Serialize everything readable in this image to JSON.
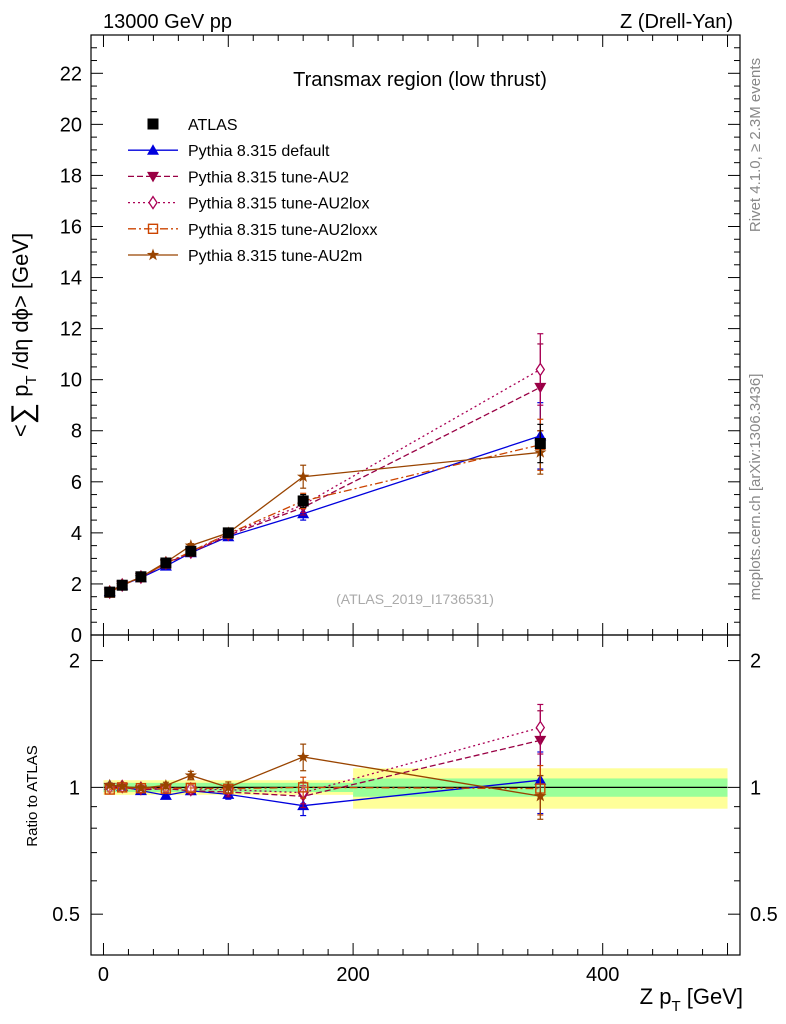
{
  "header": {
    "left": "13000 GeV pp",
    "right": "Z (Drell-Yan)"
  },
  "side_labels": {
    "rivet": "Rivet 4.1.0, ≥ 2.3M events",
    "mcplots": "mcplots.cern.ch [arXiv:1306.3436]"
  },
  "chart_data": {
    "type": "line",
    "title": "Transmax region (low thrust)",
    "watermark": "(ATLAS_2019_I1736531)",
    "xlabel": "Z p_T [GeV]",
    "ylabel": "<∑ p_T /dη dφ> [GeV]",
    "ratio_ylabel": "Ratio to ATLAS",
    "xlim": [
      -10,
      510
    ],
    "ylim": [
      0,
      23.5
    ],
    "ratio_ylim": [
      0.4,
      2.3
    ],
    "x_ticks": [
      "0",
      "200",
      "400"
    ],
    "y_ticks": [
      "0",
      "2",
      "4",
      "6",
      "8",
      "10",
      "12",
      "14",
      "16",
      "18",
      "20",
      "22"
    ],
    "ratio_ticks": [
      "0.5",
      "1",
      "2"
    ],
    "x": [
      5,
      15,
      30,
      50,
      70,
      100,
      160,
      350
    ],
    "data": {
      "name": "ATLAS",
      "values": [
        1.68,
        1.95,
        2.28,
        2.82,
        3.28,
        4.0,
        5.25,
        7.5
      ],
      "errors": [
        0.04,
        0.04,
        0.05,
        0.06,
        0.08,
        0.12,
        0.25,
        0.75
      ],
      "ratio_band": [
        {
          "x0": 0,
          "x1": 200,
          "inner": 0.025,
          "outer": 0.04
        },
        {
          "x0": 200,
          "x1": 500,
          "inner": 0.05,
          "outer": 0.11
        }
      ]
    },
    "series": [
      {
        "name": "Pythia 8.315 default",
        "color": "#0000dd",
        "dash": "",
        "marker": "triangle-up",
        "values": [
          1.7,
          1.96,
          2.24,
          2.7,
          3.22,
          3.85,
          4.75,
          7.8
        ],
        "errors": [
          0.02,
          0.02,
          0.03,
          0.04,
          0.06,
          0.1,
          0.25,
          1.3
        ]
      },
      {
        "name": "Pythia 8.315 tune-AU2",
        "color": "#990044",
        "dash": "6,3",
        "marker": "triangle-down",
        "values": [
          1.68,
          1.95,
          2.25,
          2.8,
          3.22,
          3.9,
          5.0,
          9.7
        ],
        "errors": [
          0.02,
          0.02,
          0.03,
          0.04,
          0.06,
          0.1,
          0.3,
          1.7
        ]
      },
      {
        "name": "Pythia 8.315 tune-AU2lox",
        "color": "#aa0055",
        "dash": "2,3",
        "marker": "diamond-open",
        "values": [
          1.68,
          1.96,
          2.27,
          2.82,
          3.25,
          3.95,
          5.1,
          10.4
        ],
        "errors": [
          0.02,
          0.02,
          0.03,
          0.04,
          0.06,
          0.1,
          0.3,
          1.4
        ]
      },
      {
        "name": "Pythia 8.315 tune-AU2loxx",
        "color": "#cc4400",
        "dash": "8,3,2,3",
        "marker": "square-open",
        "values": [
          1.66,
          1.95,
          2.27,
          2.8,
          3.27,
          3.97,
          5.25,
          7.45
        ],
        "errors": [
          0.02,
          0.02,
          0.03,
          0.04,
          0.06,
          0.1,
          0.3,
          1.0
        ]
      },
      {
        "name": "Pythia 8.315 tune-AU2m",
        "color": "#994400",
        "dash": "",
        "marker": "star",
        "values": [
          1.7,
          1.96,
          2.27,
          2.85,
          3.5,
          4.0,
          6.2,
          7.15
        ],
        "errors": [
          0.02,
          0.02,
          0.03,
          0.05,
          0.08,
          0.12,
          0.45,
          0.85
        ]
      }
    ]
  }
}
